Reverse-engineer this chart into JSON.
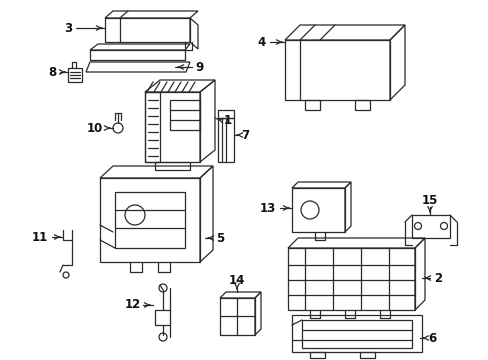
{
  "bg_color": "#ffffff",
  "line_color": "#2a2a2a",
  "label_color": "#111111",
  "fig_width": 4.89,
  "fig_height": 3.6,
  "dpi": 100
}
